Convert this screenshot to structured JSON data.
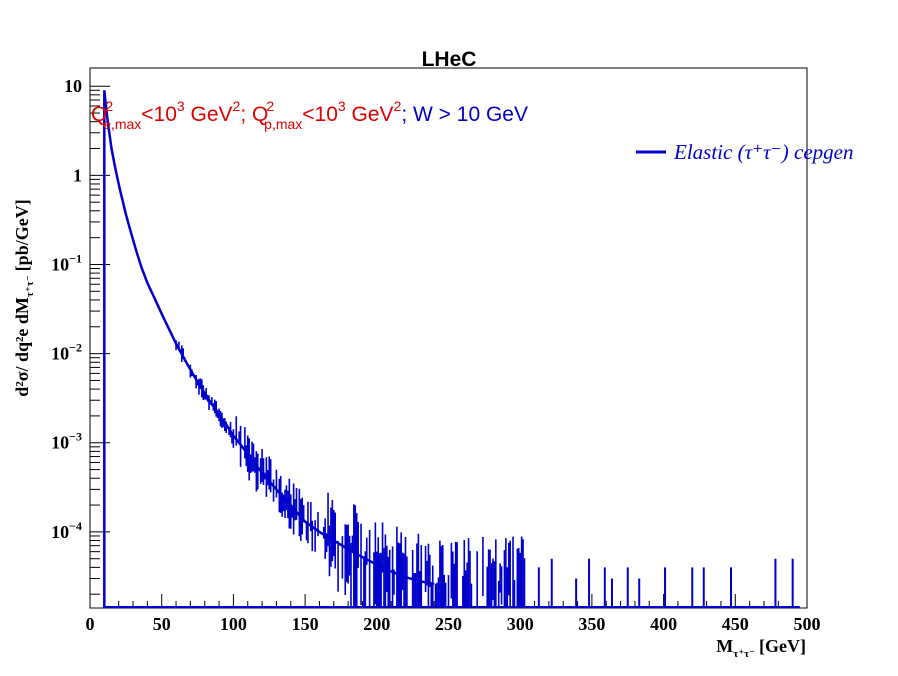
{
  "chart_data": {
    "type": "line",
    "title": "LHeC",
    "xlabel": "M",
    "xlabel_sub": "τ⁺τ⁻",
    "xlabel_unit": "[GeV]",
    "ylabel": "d²σ/ dq²e dM",
    "ylabel_sub": "τ⁺τ⁻",
    "ylabel_unit": "[pb/GeV]",
    "xlim": [
      0,
      500
    ],
    "ylim": [
      1.4e-05,
      16
    ],
    "log_y": true,
    "grid": false,
    "legend_position": "top-right",
    "x_ticks": [
      0,
      50,
      100,
      150,
      200,
      250,
      300,
      350,
      400,
      450,
      500
    ],
    "y_ticks": [
      {
        "value": 0.0001,
        "base": "10",
        "exp": "−4"
      },
      {
        "value": 0.001,
        "base": "10",
        "exp": "−3"
      },
      {
        "value": 0.01,
        "base": "10",
        "exp": "−2"
      },
      {
        "value": 0.1,
        "base": "10",
        "exp": "−1"
      },
      {
        "value": 1,
        "base": "1",
        "exp": ""
      },
      {
        "value": 10,
        "base": "10",
        "exp": ""
      }
    ],
    "annotation": {
      "cut1": "Q²e,max<10³ GeV²;",
      "cut2": "Q²p,max<10³ GeV²;",
      "cut3": "W > 10 GeV"
    },
    "series": [
      {
        "name": "Elastic (τ⁺τ⁻) cepgen",
        "color": "#0000cc",
        "points": [
          [
            10,
            9.0
          ],
          [
            11,
            6.2
          ],
          [
            12,
            4.5
          ],
          [
            13,
            3.4
          ],
          [
            14,
            2.6
          ],
          [
            15,
            2.0
          ],
          [
            17,
            1.35
          ],
          [
            19,
            0.95
          ],
          [
            21,
            0.68
          ],
          [
            23,
            0.5
          ],
          [
            25,
            0.37
          ],
          [
            27,
            0.28
          ],
          [
            30,
            0.19
          ],
          [
            33,
            0.13
          ],
          [
            36,
            0.092
          ],
          [
            40,
            0.062
          ],
          [
            45,
            0.042
          ],
          [
            50,
            0.028
          ],
          [
            55,
            0.019
          ],
          [
            60,
            0.013
          ],
          [
            65,
            0.0092
          ],
          [
            70,
            0.0066
          ],
          [
            75,
            0.0048
          ],
          [
            80,
            0.0036
          ],
          [
            85,
            0.0027
          ],
          [
            90,
            0.0021
          ],
          [
            95,
            0.0016
          ],
          [
            100,
            0.0012
          ],
          [
            105,
            0.00095
          ],
          [
            110,
            0.00075
          ],
          [
            115,
            0.00058
          ],
          [
            120,
            0.00046
          ],
          [
            125,
            0.00037
          ],
          [
            130,
            0.0003
          ],
          [
            135,
            0.00024
          ],
          [
            140,
            0.0002
          ],
          [
            145,
            0.00016
          ],
          [
            150,
            0.00013
          ],
          [
            160,
            0.0001
          ],
          [
            170,
            8e-05
          ],
          [
            180,
            6.4e-05
          ],
          [
            190,
            5.2e-05
          ],
          [
            200,
            4.3e-05
          ],
          [
            210,
            3.6e-05
          ],
          [
            220,
            3.1e-05
          ],
          [
            230,
            2.8e-05
          ],
          [
            240,
            2.6e-05
          ]
        ]
      }
    ],
    "isolated_spikes": [
      [
        313,
        4e-05
      ],
      [
        322,
        5e-05
      ],
      [
        339,
        3e-05
      ],
      [
        348,
        5e-05
      ],
      [
        359,
        4e-05
      ],
      [
        364,
        3e-05
      ],
      [
        375,
        4e-05
      ],
      [
        383,
        3e-05
      ],
      [
        401,
        4e-05
      ],
      [
        420,
        4e-05
      ],
      [
        428,
        4e-05
      ],
      [
        447,
        4e-05
      ],
      [
        478,
        5e-05
      ],
      [
        490,
        5e-05
      ]
    ]
  }
}
